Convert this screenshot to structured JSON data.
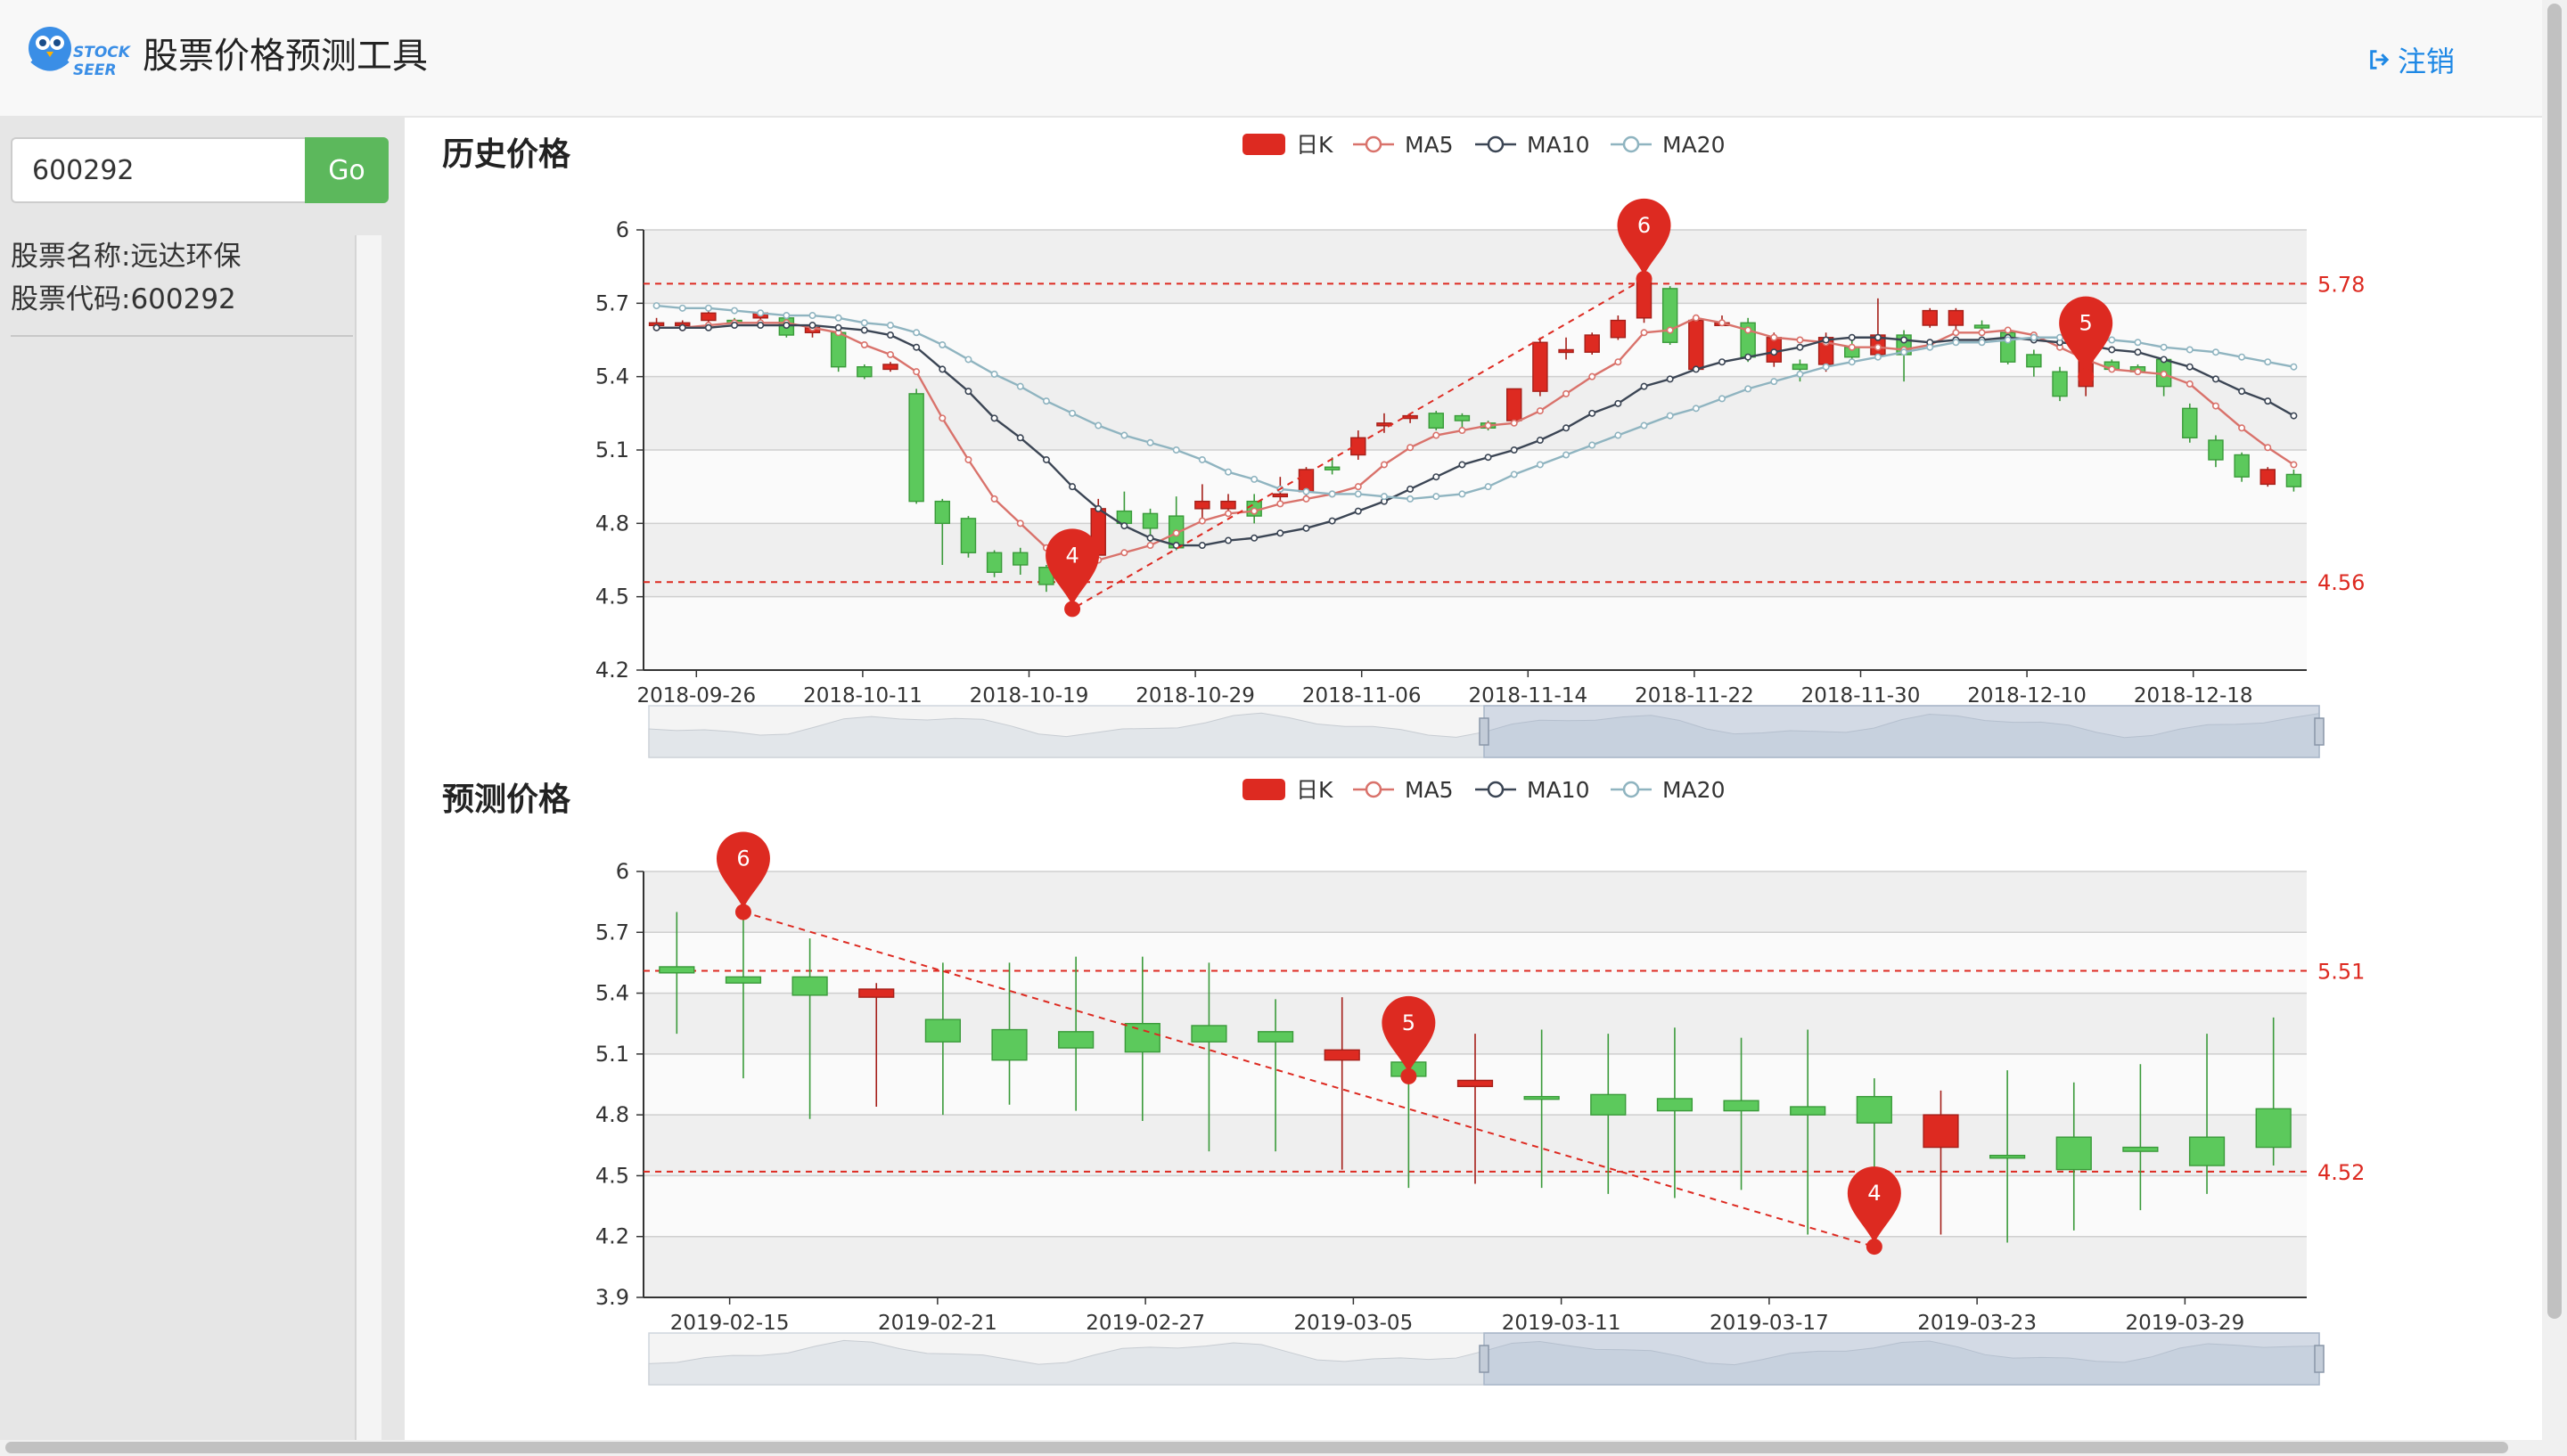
{
  "header": {
    "logo_text_line1": "STOCK",
    "logo_text_line2": "SEER",
    "title": "股票价格预测工具",
    "logout_label": "注销"
  },
  "sidebar": {
    "search_value": "600292",
    "go_label": "Go",
    "stock_name": "股票名称:远达环保",
    "stock_code": "股票代码:600292"
  },
  "colors": {
    "up": "#dd2a21",
    "down": "#5cc95c",
    "ma5": "#d9726b",
    "ma10": "#3b4554",
    "ma20": "#8fb4c0",
    "accent": "#1e88e5",
    "go": "#5cb85c"
  },
  "chart_data": [
    {
      "type": "candlestick",
      "title": "历史价格",
      "legend": [
        "日K",
        "MA5",
        "MA10",
        "MA20"
      ],
      "ylim": [
        4.2,
        6.0
      ],
      "yticks": [
        "6",
        "5.7",
        "5.4",
        "5.1",
        "4.8",
        "4.5",
        "4.2"
      ],
      "xticks": [
        "2018-09-26",
        "2018-10-11",
        "2018-10-19",
        "2018-10-29",
        "2018-11-06",
        "2018-11-14",
        "2018-11-22",
        "2018-11-30",
        "2018-12-10",
        "2018-12-18"
      ],
      "candles": [
        [
          5.61,
          5.62,
          5.6,
          5.64
        ],
        [
          5.61,
          5.62,
          5.59,
          5.63
        ],
        [
          5.63,
          5.66,
          5.61,
          5.67
        ],
        [
          5.63,
          5.62,
          5.6,
          5.64
        ],
        [
          5.64,
          5.66,
          5.62,
          5.67
        ],
        [
          5.64,
          5.57,
          5.56,
          5.65
        ],
        [
          5.58,
          5.6,
          5.56,
          5.61
        ],
        [
          5.58,
          5.44,
          5.42,
          5.59
        ],
        [
          5.44,
          5.4,
          5.39,
          5.45
        ],
        [
          5.43,
          5.45,
          5.42,
          5.46
        ],
        [
          5.33,
          4.89,
          4.88,
          5.35
        ],
        [
          4.89,
          4.8,
          4.63,
          4.9
        ],
        [
          4.82,
          4.68,
          4.66,
          4.83
        ],
        [
          4.68,
          4.6,
          4.58,
          4.69
        ],
        [
          4.68,
          4.63,
          4.59,
          4.7
        ],
        [
          4.62,
          4.55,
          4.52,
          4.63
        ],
        [
          4.62,
          4.63,
          4.45,
          4.65
        ],
        [
          4.67,
          4.86,
          4.65,
          4.9
        ],
        [
          4.85,
          4.8,
          4.78,
          4.93
        ],
        [
          4.84,
          4.78,
          4.7,
          4.86
        ],
        [
          4.83,
          4.7,
          4.69,
          4.91
        ],
        [
          4.86,
          4.89,
          4.82,
          4.96
        ],
        [
          4.86,
          4.89,
          4.84,
          4.92
        ],
        [
          4.89,
          4.83,
          4.8,
          4.92
        ],
        [
          4.91,
          4.92,
          4.89,
          4.99
        ],
        [
          4.93,
          5.02,
          4.91,
          5.03
        ],
        [
          5.03,
          5.02,
          5.0,
          5.07
        ],
        [
          5.08,
          5.15,
          5.06,
          5.18
        ],
        [
          5.2,
          5.21,
          5.17,
          5.25
        ],
        [
          5.23,
          5.24,
          5.21,
          5.25
        ],
        [
          5.25,
          5.19,
          5.18,
          5.26
        ],
        [
          5.24,
          5.22,
          5.19,
          5.25
        ],
        [
          5.21,
          5.19,
          5.18,
          5.22
        ],
        [
          5.22,
          5.35,
          5.21,
          5.35
        ],
        [
          5.34,
          5.54,
          5.32,
          5.56
        ],
        [
          5.51,
          5.51,
          5.47,
          5.56
        ],
        [
          5.5,
          5.57,
          5.49,
          5.58
        ],
        [
          5.56,
          5.63,
          5.55,
          5.65
        ],
        [
          5.64,
          5.8,
          5.62,
          5.82
        ],
        [
          5.76,
          5.54,
          5.53,
          5.77
        ],
        [
          5.43,
          5.63,
          5.42,
          5.64
        ],
        [
          5.62,
          5.62,
          5.61,
          5.65
        ],
        [
          5.62,
          5.48,
          5.46,
          5.64
        ],
        [
          5.46,
          5.56,
          5.44,
          5.58
        ],
        [
          5.45,
          5.43,
          5.38,
          5.47
        ],
        [
          5.45,
          5.56,
          5.42,
          5.58
        ],
        [
          5.52,
          5.48,
          5.46,
          5.55
        ],
        [
          5.49,
          5.57,
          5.48,
          5.72
        ],
        [
          5.57,
          5.49,
          5.38,
          5.59
        ],
        [
          5.61,
          5.67,
          5.6,
          5.68
        ],
        [
          5.61,
          5.67,
          5.59,
          5.68
        ],
        [
          5.61,
          5.6,
          5.58,
          5.63
        ],
        [
          5.58,
          5.46,
          5.45,
          5.6
        ],
        [
          5.49,
          5.44,
          5.4,
          5.51
        ],
        [
          5.42,
          5.32,
          5.3,
          5.44
        ],
        [
          5.36,
          5.49,
          5.32,
          5.5
        ],
        [
          5.46,
          5.43,
          5.42,
          5.47
        ],
        [
          5.44,
          5.42,
          5.41,
          5.45
        ],
        [
          5.47,
          5.36,
          5.32,
          5.48
        ],
        [
          5.27,
          5.15,
          5.13,
          5.29
        ],
        [
          5.14,
          5.06,
          5.03,
          5.16
        ],
        [
          5.08,
          4.99,
          4.97,
          5.09
        ],
        [
          4.96,
          5.02,
          4.95,
          5.03
        ],
        [
          5.0,
          4.95,
          4.93,
          5.02
        ]
      ],
      "ma5": [
        5.6,
        5.6,
        5.61,
        5.62,
        5.62,
        5.62,
        5.6,
        5.58,
        5.53,
        5.49,
        5.42,
        5.23,
        5.06,
        4.9,
        4.8,
        4.7,
        4.65,
        4.65,
        4.68,
        4.71,
        4.76,
        4.81,
        4.84,
        4.85,
        4.88,
        4.9,
        4.92,
        4.95,
        5.04,
        5.11,
        5.16,
        5.18,
        5.2,
        5.21,
        5.26,
        5.33,
        5.4,
        5.46,
        5.58,
        5.59,
        5.64,
        5.62,
        5.59,
        5.56,
        5.55,
        5.54,
        5.52,
        5.52,
        5.51,
        5.53,
        5.58,
        5.58,
        5.59,
        5.57,
        5.52,
        5.47,
        5.43,
        5.42,
        5.41,
        5.37,
        5.28,
        5.19,
        5.11,
        5.04
      ],
      "ma10": [
        5.6,
        5.6,
        5.6,
        5.61,
        5.61,
        5.61,
        5.61,
        5.6,
        5.59,
        5.57,
        5.52,
        5.43,
        5.34,
        5.23,
        5.15,
        5.06,
        4.95,
        4.86,
        4.79,
        4.74,
        4.71,
        4.71,
        4.73,
        4.74,
        4.76,
        4.78,
        4.81,
        4.85,
        4.89,
        4.94,
        4.99,
        5.04,
        5.07,
        5.1,
        5.14,
        5.19,
        5.25,
        5.29,
        5.36,
        5.39,
        5.43,
        5.46,
        5.48,
        5.5,
        5.52,
        5.55,
        5.56,
        5.56,
        5.55,
        5.54,
        5.55,
        5.55,
        5.56,
        5.55,
        5.54,
        5.53,
        5.51,
        5.5,
        5.47,
        5.44,
        5.39,
        5.34,
        5.3,
        5.24
      ],
      "ma20": [
        5.69,
        5.68,
        5.68,
        5.67,
        5.66,
        5.65,
        5.65,
        5.64,
        5.62,
        5.61,
        5.58,
        5.53,
        5.47,
        5.41,
        5.36,
        5.3,
        5.25,
        5.2,
        5.16,
        5.13,
        5.1,
        5.06,
        5.01,
        4.98,
        4.94,
        4.93,
        4.92,
        4.92,
        4.91,
        4.9,
        4.91,
        4.92,
        4.95,
        5.0,
        5.04,
        5.08,
        5.12,
        5.16,
        5.2,
        5.24,
        5.27,
        5.31,
        5.35,
        5.38,
        5.41,
        5.44,
        5.46,
        5.48,
        5.5,
        5.52,
        5.54,
        5.54,
        5.55,
        5.56,
        5.56,
        5.55,
        5.55,
        5.54,
        5.52,
        5.51,
        5.5,
        5.48,
        5.46,
        5.44
      ],
      "markpoints": [
        {
          "label": "6",
          "index": 38,
          "value": 5.8
        },
        {
          "label": "4",
          "index": 16,
          "value": 4.45
        },
        {
          "label": "5",
          "index": 55,
          "value": 5.4
        }
      ],
      "marklines": [
        {
          "value": 5.78,
          "label": "5.78"
        },
        {
          "value": 4.56,
          "label": "4.56"
        }
      ]
    },
    {
      "type": "candlestick",
      "title": "预测价格",
      "legend": [
        "日K",
        "MA5",
        "MA10",
        "MA20"
      ],
      "ylim": [
        3.9,
        6.0
      ],
      "yticks": [
        "6",
        "5.7",
        "5.4",
        "5.1",
        "4.8",
        "4.5",
        "4.2",
        "3.9"
      ],
      "xticks": [
        "2019-02-15",
        "2019-02-21",
        "2019-02-27",
        "2019-03-05",
        "2019-03-11",
        "2019-03-17",
        "2019-03-23",
        "2019-03-29"
      ],
      "candles": [
        [
          5.53,
          5.5,
          5.2,
          5.8
        ],
        [
          5.48,
          5.45,
          4.98,
          5.8
        ],
        [
          5.48,
          5.39,
          4.78,
          5.67
        ],
        [
          5.38,
          5.42,
          4.84,
          5.45
        ],
        [
          5.27,
          5.16,
          4.8,
          5.55
        ],
        [
          5.22,
          5.07,
          4.85,
          5.55
        ],
        [
          5.21,
          5.13,
          4.82,
          5.58
        ],
        [
          5.25,
          5.11,
          4.77,
          5.58
        ],
        [
          5.24,
          5.16,
          4.62,
          5.55
        ],
        [
          5.21,
          5.16,
          4.62,
          5.37
        ],
        [
          5.07,
          5.12,
          4.53,
          5.38
        ],
        [
          5.06,
          4.99,
          4.44,
          5.35
        ],
        [
          4.94,
          4.97,
          4.46,
          5.2
        ],
        [
          4.89,
          4.88,
          4.44,
          5.22
        ],
        [
          4.9,
          4.8,
          4.41,
          5.2
        ],
        [
          4.88,
          4.82,
          4.39,
          5.23
        ],
        [
          4.87,
          4.82,
          4.43,
          5.18
        ],
        [
          4.84,
          4.8,
          4.21,
          5.22
        ],
        [
          4.89,
          4.76,
          4.21,
          4.98
        ],
        [
          4.64,
          4.8,
          4.21,
          4.92
        ],
        [
          4.6,
          4.59,
          4.17,
          5.02
        ],
        [
          4.69,
          4.53,
          4.23,
          4.96
        ],
        [
          4.64,
          4.62,
          4.33,
          5.05
        ],
        [
          4.69,
          4.55,
          4.41,
          5.2
        ],
        [
          4.83,
          4.64,
          4.55,
          5.28
        ]
      ],
      "markpoints": [
        {
          "label": "6",
          "index": 1,
          "value": 5.8
        },
        {
          "label": "5",
          "index": 11,
          "value": 4.99
        },
        {
          "label": "4",
          "index": 18,
          "value": 4.15
        }
      ],
      "marklines": [
        {
          "value": 5.51,
          "label": "5.51"
        },
        {
          "value": 4.52,
          "label": "4.52"
        }
      ]
    }
  ]
}
